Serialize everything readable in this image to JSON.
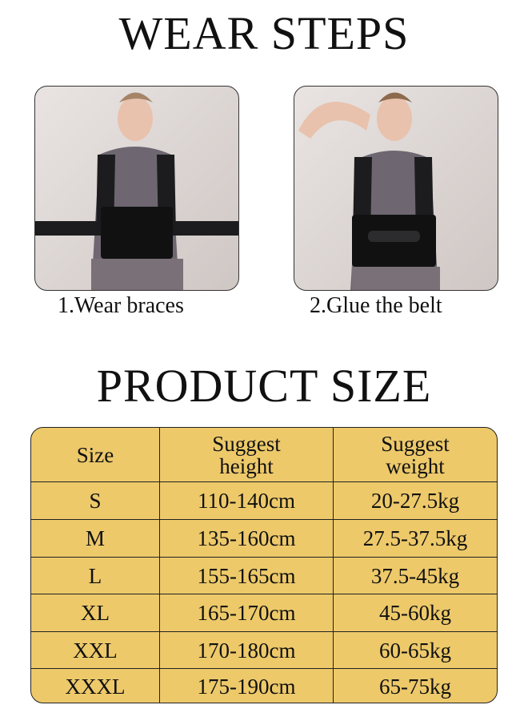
{
  "wear_steps": {
    "title": "WEAR STEPS",
    "steps": [
      {
        "caption": "1.Wear braces"
      },
      {
        "caption": "2.Glue the belt"
      }
    ]
  },
  "product_size": {
    "title": "PRODUCT SIZE",
    "headers": [
      "Size",
      "Suggest height",
      "Suggest weight"
    ],
    "rows": [
      {
        "size": "S",
        "height": "110-140cm",
        "weight": "20-27.5kg"
      },
      {
        "size": "M",
        "height": "135-160cm",
        "weight": "27.5-37.5kg"
      },
      {
        "size": "L",
        "height": "155-165cm",
        "weight": "37.5-45kg"
      },
      {
        "size": "XL",
        "height": "165-170cm",
        "weight": "45-60kg"
      },
      {
        "size": "XXL",
        "height": "170-180cm",
        "weight": "60-65kg"
      },
      {
        "size": "XXXL",
        "height": "175-190cm",
        "weight": "65-75kg"
      }
    ]
  },
  "colors": {
    "table_bg": "#edc96a",
    "border": "#222222"
  }
}
